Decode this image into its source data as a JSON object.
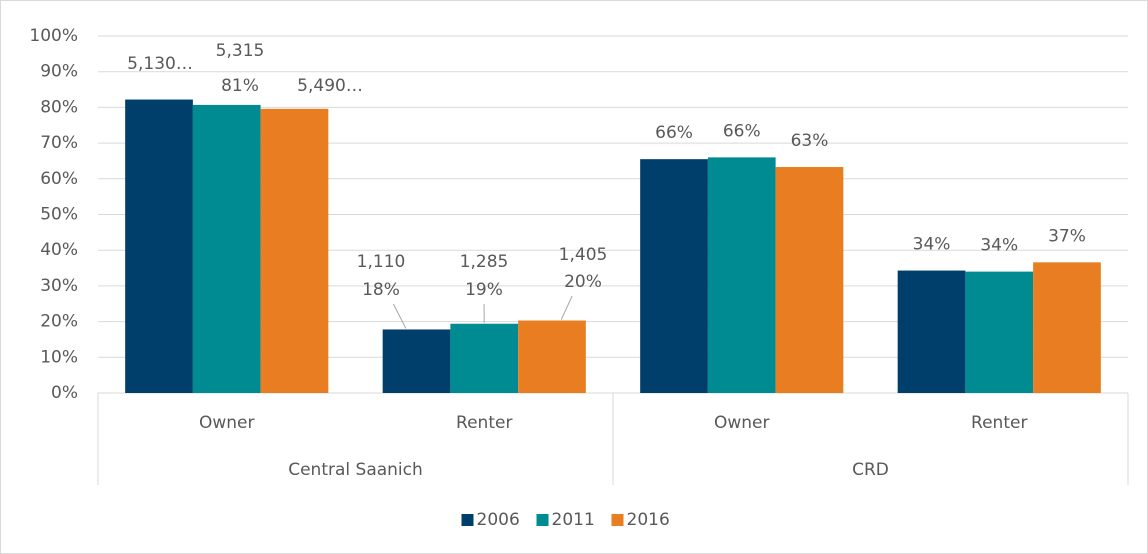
{
  "chart_data": {
    "type": "bar",
    "categories": [
      "Owner",
      "Renter",
      "Owner",
      "Renter"
    ],
    "groups": [
      {
        "label": "Central Saanich",
        "span": 2
      },
      {
        "label": "CRD",
        "span": 2
      }
    ],
    "series": [
      {
        "name": "2006",
        "color": "#003f6b",
        "values": [
          82.2,
          17.8,
          65.5,
          34.3
        ],
        "count_labels": [
          "5,130…",
          "1,110",
          null,
          null
        ],
        "value_labels": [
          null,
          "18%",
          "66%",
          "34%"
        ]
      },
      {
        "name": "2011",
        "color": "#008b93",
        "values": [
          80.7,
          19.4,
          66.0,
          34.0
        ],
        "count_labels": [
          "5,315",
          "1,285",
          null,
          null
        ],
        "value_labels": [
          "81%",
          "19%",
          "66%",
          "34%"
        ]
      },
      {
        "name": "2016",
        "color": "#e97d22",
        "values": [
          79.6,
          20.3,
          63.3,
          36.6
        ],
        "count_labels": [
          "5,490…",
          "1,405",
          null,
          null
        ],
        "value_labels": [
          null,
          "20%",
          "63%",
          "37%"
        ]
      }
    ],
    "ylim": [
      0,
      100
    ],
    "yticks": [
      {
        "value": 0,
        "label": "0%"
      },
      {
        "value": 10,
        "label": "10%"
      },
      {
        "value": 20,
        "label": "20%"
      },
      {
        "value": 30,
        "label": "30%"
      },
      {
        "value": 40,
        "label": "40%"
      },
      {
        "value": 50,
        "label": "50%"
      },
      {
        "value": 60,
        "label": "60%"
      },
      {
        "value": 70,
        "label": "70%"
      },
      {
        "value": 80,
        "label": "80%"
      },
      {
        "value": 90,
        "label": "90%"
      },
      {
        "value": 100,
        "label": "100%"
      }
    ],
    "grid": true,
    "legend": "bottom"
  }
}
